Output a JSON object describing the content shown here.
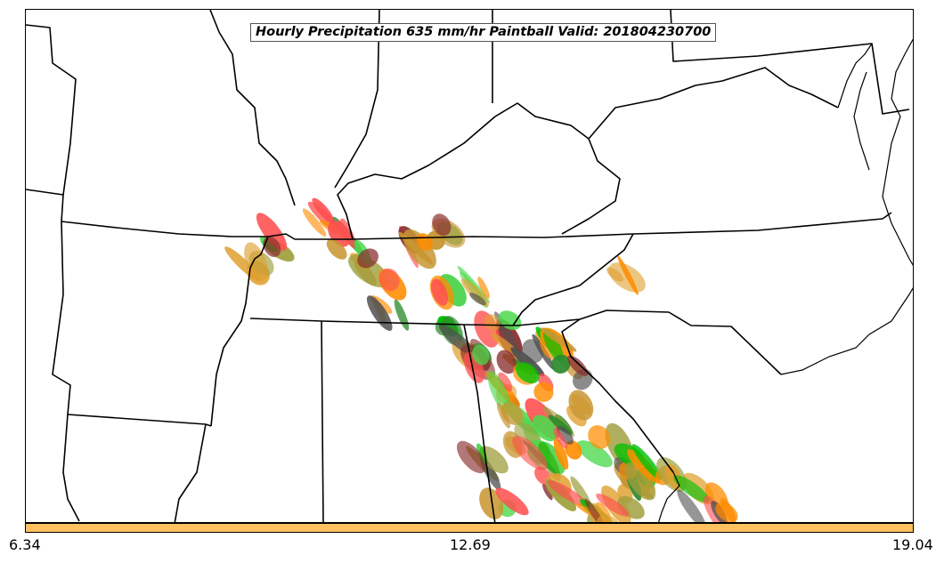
{
  "title": "Hourly Precipitation 635 mm/hr Paintball Valid: 201804230700",
  "colorbar": {
    "fill_color": "#ffc060",
    "min_label": "6.34",
    "mid_label": "12.69",
    "max_label": "19.04"
  },
  "paintball_colors": [
    "#ff5050",
    "#ff8c00",
    "#2e8b2e",
    "#4cd94c",
    "#c89632",
    "#8b3030",
    "#e0a030",
    "#a0a040",
    "#00c000",
    "#505050"
  ]
}
